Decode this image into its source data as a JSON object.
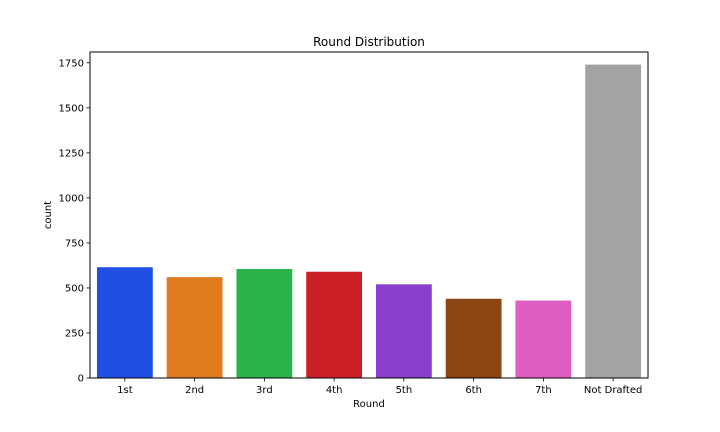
{
  "chart_data": {
    "type": "bar",
    "title": "Round Distribution",
    "xlabel": "Round",
    "ylabel": "count",
    "categories": [
      "1st",
      "2nd",
      "3rd",
      "4th",
      "5th",
      "6th",
      "7th",
      "Not Drafted"
    ],
    "values": [
      615,
      560,
      605,
      590,
      520,
      440,
      430,
      1740
    ],
    "colors": [
      "#1f4fe3",
      "#e07b20",
      "#2ab34a",
      "#cc1e27",
      "#8a40cc",
      "#8b4513",
      "#de5dc1",
      "#a3a3a3"
    ],
    "yticks": [
      0,
      250,
      500,
      750,
      1000,
      1250,
      1500,
      1750
    ],
    "ylim": [
      0,
      1810
    ],
    "grid": false,
    "legend": "none"
  }
}
